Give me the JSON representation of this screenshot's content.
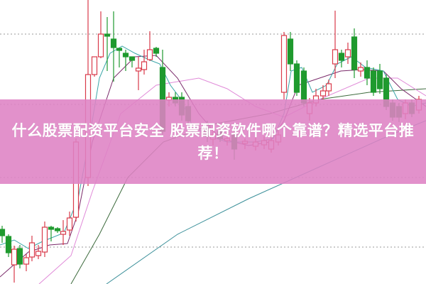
{
  "headline": {
    "title": "什么股票配资平台安全 股票配资软件哪个靠谱？精选平台推荐！"
  },
  "chart_data": {
    "type": "candlestick",
    "title": "",
    "xlabel": "",
    "ylabel": "",
    "grid": "dotted horizontal",
    "legend": "none",
    "colors": {
      "up": "#d93a4a",
      "down": "#1f9a2e",
      "ma_short": "#3aa6a8",
      "ma_mid": "#7a2a6a",
      "ma_long": "#e08ad8",
      "ma_longer": "#3d6b3d",
      "ma_longest": "#3a8f99",
      "banner": "#de82c4"
    },
    "moving_average_lines": 5
  }
}
